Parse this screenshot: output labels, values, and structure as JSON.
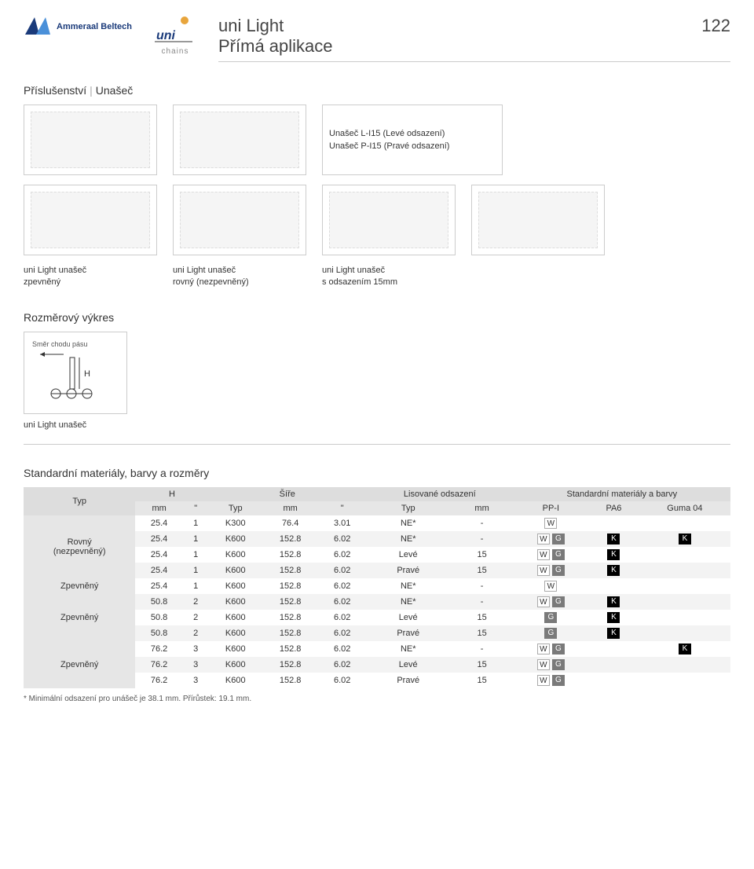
{
  "header": {
    "brand": "Ammeraal Beltech",
    "sub_brand": "chains",
    "title_line1": "uni Light",
    "title_line2": "Přímá aplikace",
    "page_number": "122"
  },
  "section1": {
    "label_a": "Příslušenství",
    "label_b": "Unašeč"
  },
  "top_captions": {
    "c3a": "Unašeč L-I15 (Levé odsazení)",
    "c3b": "Unašeč P-I15 (Pravé odsazení)"
  },
  "mid_captions": {
    "a1": "uni Light unašeč",
    "a2": "zpevněný",
    "b1": "uni Light unašeč",
    "b2": "rovný (nezpevněný)",
    "c1": "uni Light unašeč",
    "c2": "s odsazením 15mm"
  },
  "section2": {
    "label": "Rozměrový výkres"
  },
  "drawing": {
    "direction": "Směr chodu pásu",
    "dim": "H",
    "caption": "uni Light unašeč"
  },
  "section3": {
    "label": "Standardní materiály, barvy a rozměry"
  },
  "table": {
    "group_headers": {
      "typ": "Typ",
      "h": "H",
      "sire": "Šíře",
      "lis": "Lisované odsazení",
      "std": "Standardní materiály a barvy"
    },
    "sub_headers": {
      "mm": "mm",
      "in": "\"",
      "typ": "Typ",
      "ppi": "PP-I",
      "pa6": "PA6",
      "guma": "Guma 04"
    },
    "row_labels": {
      "rovny1": "Rovný",
      "rovny2": "(nezpevněný)",
      "zpevneny": "Zpevněný"
    },
    "rows": [
      {
        "h_mm": "25.4",
        "h_in": "1",
        "t": "K300",
        "s_mm": "76.4",
        "s_in": "3.01",
        "lt": "NE*",
        "lmm": "-",
        "ppi": [
          "W"
        ],
        "pa6": [],
        "guma": []
      },
      {
        "h_mm": "25.4",
        "h_in": "1",
        "t": "K600",
        "s_mm": "152.8",
        "s_in": "6.02",
        "lt": "NE*",
        "lmm": "-",
        "ppi": [
          "W",
          "G"
        ],
        "pa6": [
          "K"
        ],
        "guma": [
          "K"
        ]
      },
      {
        "h_mm": "25.4",
        "h_in": "1",
        "t": "K600",
        "s_mm": "152.8",
        "s_in": "6.02",
        "lt": "Levé",
        "lmm": "15",
        "ppi": [
          "W",
          "G"
        ],
        "pa6": [
          "K"
        ],
        "guma": []
      },
      {
        "h_mm": "25.4",
        "h_in": "1",
        "t": "K600",
        "s_mm": "152.8",
        "s_in": "6.02",
        "lt": "Pravé",
        "lmm": "15",
        "ppi": [
          "W",
          "G"
        ],
        "pa6": [
          "K"
        ],
        "guma": []
      },
      {
        "h_mm": "25.4",
        "h_in": "1",
        "t": "K600",
        "s_mm": "152.8",
        "s_in": "6.02",
        "lt": "NE*",
        "lmm": "-",
        "ppi": [
          "W"
        ],
        "pa6": [],
        "guma": []
      },
      {
        "h_mm": "50.8",
        "h_in": "2",
        "t": "K600",
        "s_mm": "152.8",
        "s_in": "6.02",
        "lt": "NE*",
        "lmm": "-",
        "ppi": [
          "W",
          "G"
        ],
        "pa6": [
          "K"
        ],
        "guma": []
      },
      {
        "h_mm": "50.8",
        "h_in": "2",
        "t": "K600",
        "s_mm": "152.8",
        "s_in": "6.02",
        "lt": "Levé",
        "lmm": "15",
        "ppi": [
          "G"
        ],
        "pa6": [
          "K"
        ],
        "guma": []
      },
      {
        "h_mm": "50.8",
        "h_in": "2",
        "t": "K600",
        "s_mm": "152.8",
        "s_in": "6.02",
        "lt": "Pravé",
        "lmm": "15",
        "ppi": [
          "G"
        ],
        "pa6": [
          "K"
        ],
        "guma": []
      },
      {
        "h_mm": "76.2",
        "h_in": "3",
        "t": "K600",
        "s_mm": "152.8",
        "s_in": "6.02",
        "lt": "NE*",
        "lmm": "-",
        "ppi": [
          "W",
          "G"
        ],
        "pa6": [],
        "guma": [
          "K"
        ]
      },
      {
        "h_mm": "76.2",
        "h_in": "3",
        "t": "K600",
        "s_mm": "152.8",
        "s_in": "6.02",
        "lt": "Levé",
        "lmm": "15",
        "ppi": [
          "W",
          "G"
        ],
        "pa6": [],
        "guma": []
      },
      {
        "h_mm": "76.2",
        "h_in": "3",
        "t": "K600",
        "s_mm": "152.8",
        "s_in": "6.02",
        "lt": "Pravé",
        "lmm": "15",
        "ppi": [
          "W",
          "G"
        ],
        "pa6": [],
        "guma": []
      }
    ]
  },
  "footnote": "* Minimální odsazení pro unášeč je 38.1 mm. Přírůstek: 19.1 mm."
}
